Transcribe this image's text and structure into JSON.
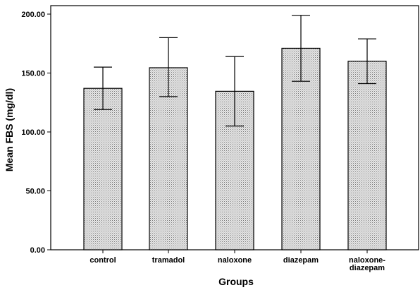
{
  "chart_data": {
    "type": "bar",
    "xlabel": "Groups",
    "ylabel": "Mean FBS (mg/dl)",
    "ylim": [
      0,
      200
    ],
    "yticks": [
      0,
      50,
      100,
      150,
      200
    ],
    "ytick_labels": [
      "0.00",
      "50.00",
      "100.00",
      "150.00",
      "200.00"
    ],
    "categories": [
      "control",
      "tramadol",
      "naloxone",
      "diazepam",
      "naloxone-diazepam"
    ],
    "category_labels": [
      [
        "control"
      ],
      [
        "tramadol"
      ],
      [
        "naloxone"
      ],
      [
        "diazepam"
      ],
      [
        "naloxone-",
        "diazepam"
      ]
    ],
    "values": [
      137,
      154.5,
      134.5,
      171,
      160
    ],
    "error_low": [
      119,
      130,
      105,
      143,
      141
    ],
    "error_high": [
      155,
      180,
      164,
      199,
      179
    ],
    "bar_fill": "#d9d9d9",
    "bar_stroke": "#000000",
    "grid": false,
    "legend": "none"
  }
}
